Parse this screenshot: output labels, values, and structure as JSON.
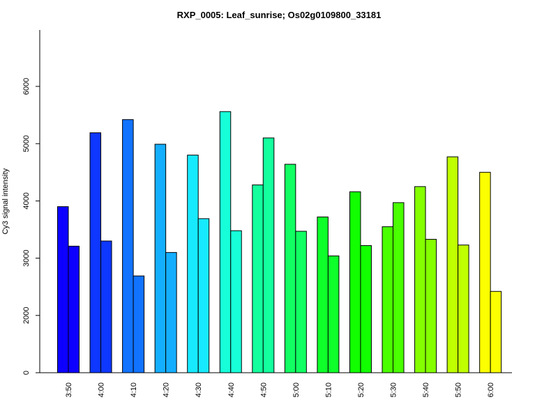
{
  "chart_data": {
    "type": "bar",
    "title": "RXP_0005: Leaf_sunrise; Os02g0109800_33181",
    "xlabel": "",
    "ylabel": "Cy3 signal intensity",
    "ylim": [
      0,
      6000
    ],
    "y_ticks": [
      "0",
      "2000",
      "3000",
      "4000",
      "5000",
      "6000"
    ],
    "y_scale": "broken: 0 and 2000 equally spaced as 1000-unit intervals",
    "grid": false,
    "legend": "none",
    "categories": [
      "3:50",
      "4:00",
      "4:10",
      "4:20",
      "4:30",
      "4:40",
      "4:50",
      "5:00",
      "5:10",
      "5:20",
      "5:30",
      "5:40",
      "5:50",
      "6:00"
    ],
    "series": [
      {
        "values": [
          3900,
          5190,
          5420,
          4990,
          4800,
          5560,
          4280,
          4640,
          3720,
          4160,
          3550,
          4250,
          4770,
          4500
        ]
      },
      {
        "values": [
          3210,
          3300,
          2690,
          3100,
          3690,
          3480,
          5100,
          3470,
          3040,
          3220,
          3970,
          3330,
          3230,
          2420
        ]
      }
    ],
    "colors": [
      "#0d00ff",
      "#0e37ff",
      "#1173ff",
      "#14aeff",
      "#17eaff",
      "#17ffd9",
      "#14ff9d",
      "#11ff62",
      "#0eff2a",
      "#12ff00",
      "#49ff00",
      "#84ff00",
      "#bfff00",
      "#fbff00"
    ]
  }
}
